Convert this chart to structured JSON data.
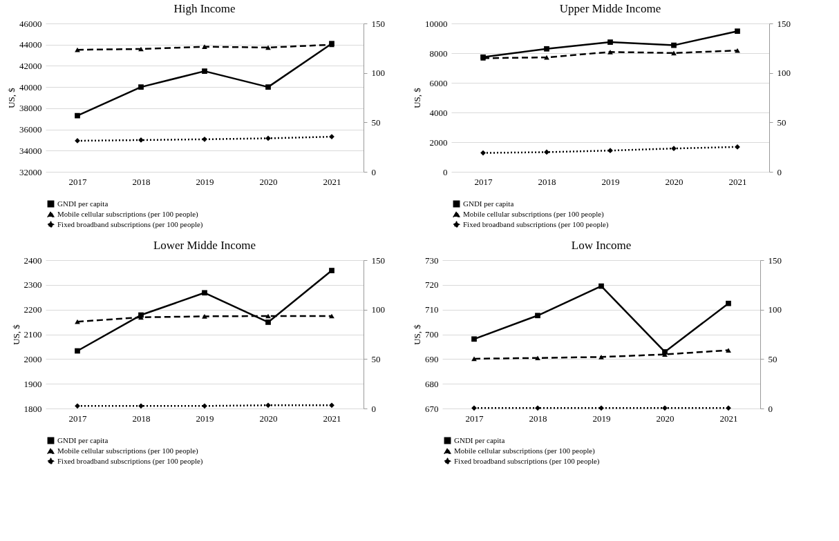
{
  "chart_data": [
    {
      "type": "line",
      "title": "High Income",
      "ylabel": "US, $",
      "categories": [
        "2017",
        "2018",
        "2019",
        "2020",
        "2021"
      ],
      "ylim": [
        32000,
        46000
      ],
      "yticks": [
        32000,
        34000,
        36000,
        38000,
        40000,
        42000,
        44000,
        46000
      ],
      "y2lim": [
        0,
        150
      ],
      "y2ticks": [
        0,
        50,
        100,
        150
      ],
      "grid": "y",
      "legend": "bottom",
      "series": [
        {
          "name": "GNDI per capita",
          "color": "#000000",
          "marker": "square",
          "line_style": "solid",
          "values": [
            37300,
            40000,
            41500,
            40000,
            44100
          ]
        },
        {
          "name": "Mobile cellular subscriptions (per 100 people)",
          "color": "#000000",
          "marker": "triangle",
          "line_style": "dashed",
          "axis": "y2",
          "values": [
            123.4,
            124.2,
            126.5,
            125.7,
            128.5
          ]
        },
        {
          "name": "Fixed broadband subscriptions (per 100 people)",
          "color": "#000000",
          "marker": "diamond",
          "line_style": "dotted",
          "axis": "y2",
          "values": [
            31.4,
            32.1,
            32.9,
            33.9,
            35.5
          ]
        }
      ]
    },
    {
      "type": "line",
      "title": "Upper Midde Income",
      "ylabel": "US, $",
      "categories": [
        "2017",
        "2018",
        "2019",
        "2020",
        "2021"
      ],
      "ylim": [
        0,
        10000
      ],
      "yticks": [
        0,
        2000,
        4000,
        6000,
        8000,
        10000
      ],
      "y2lim": [
        0,
        150
      ],
      "y2ticks": [
        0,
        50,
        100,
        150
      ],
      "grid": "y",
      "legend": "bottom",
      "series": [
        {
          "name": "GNDI per capita",
          "color": "#000000",
          "marker": "square",
          "line_style": "solid",
          "values": [
            7730,
            8290,
            8740,
            8530,
            9480
          ]
        },
        {
          "name": "Mobile cellular subscriptions (per 100 people)",
          "color": "#000000",
          "marker": "triangle",
          "line_style": "dashed",
          "axis": "y2",
          "values": [
            114.9,
            115.7,
            121.2,
            120.1,
            122.7
          ]
        },
        {
          "name": "Fixed broadband subscriptions (per 100 people)",
          "color": "#000000",
          "marker": "diamond",
          "line_style": "dotted",
          "axis": "y2",
          "values": [
            19.1,
            19.9,
            21.5,
            23.6,
            25.2
          ]
        }
      ]
    },
    {
      "type": "line",
      "title": "Lower Midde Income",
      "ylabel": "US, $",
      "categories": [
        "2017",
        "2018",
        "2019",
        "2020",
        "2021"
      ],
      "ylim": [
        1800,
        2400
      ],
      "yticks": [
        1800,
        1900,
        2000,
        2100,
        2200,
        2300,
        2400
      ],
      "y2lim": [
        0,
        150
      ],
      "y2ticks": [
        0,
        50,
        100,
        150
      ],
      "grid": "y",
      "legend": "bottom",
      "series": [
        {
          "name": "GNDI per capita",
          "color": "#000000",
          "marker": "square",
          "line_style": "solid",
          "values": [
            2033,
            2178,
            2268,
            2149,
            2358
          ]
        },
        {
          "name": "Mobile cellular subscriptions (per 100 people)",
          "color": "#000000",
          "marker": "triangle",
          "line_style": "dashed",
          "axis": "y2",
          "values": [
            87.8,
            92.2,
            93.2,
            93.5,
            93.5
          ]
        },
        {
          "name": "Fixed broadband subscriptions (per 100 people)",
          "color": "#000000",
          "marker": "diamond",
          "line_style": "dotted",
          "axis": "y2",
          "values": [
            2.6,
            2.6,
            2.6,
            3.3,
            3.3
          ]
        }
      ]
    },
    {
      "type": "line",
      "title": "Low Income",
      "ylabel": "US, $",
      "categories": [
        "2017",
        "2018",
        "2019",
        "2020",
        "2021"
      ],
      "ylim": [
        670,
        730
      ],
      "yticks": [
        670,
        680,
        690,
        700,
        710,
        720,
        730
      ],
      "y2lim": [
        0,
        150
      ],
      "y2ticks": [
        0,
        50,
        100,
        150
      ],
      "grid": "y",
      "legend": "bottom",
      "series": [
        {
          "name": "GNDI per capita",
          "color": "#000000",
          "marker": "square",
          "line_style": "solid",
          "values": [
            698.1,
            707.6,
            719.5,
            692.9,
            712.5
          ]
        },
        {
          "name": "Mobile cellular subscriptions (per 100 people)",
          "color": "#000000",
          "marker": "triangle",
          "line_style": "dashed",
          "axis": "y2",
          "values": [
            50.3,
            51.1,
            52.1,
            54.7,
            58.9
          ]
        },
        {
          "name": "Fixed broadband subscriptions (per 100 people)",
          "color": "#000000",
          "marker": "diamond",
          "line_style": "dotted",
          "axis": "y2",
          "values": [
            0.5,
            0.5,
            0.5,
            0.5,
            0.5
          ]
        }
      ]
    }
  ]
}
